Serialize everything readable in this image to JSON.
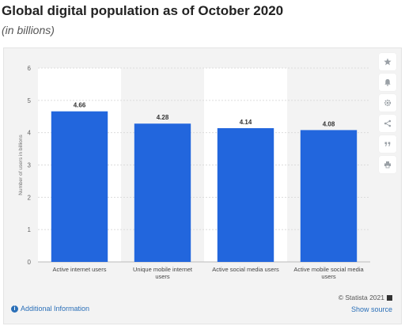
{
  "header": {
    "title": "Global digital population as of October 2020",
    "subtitle": "(in billions)"
  },
  "toolbar": {
    "icons": [
      "star-icon",
      "bell-icon",
      "gear-icon",
      "share-icon",
      "quote-icon",
      "print-icon"
    ]
  },
  "footer": {
    "copyright": "© Statista 2021",
    "additional_info": "Additional Information",
    "show_source": "Show source"
  },
  "colors": {
    "bar": "#2266dd",
    "stripe": "#f3f3f3",
    "plot_bg": "#ffffff"
  },
  "chart_data": {
    "type": "bar",
    "categories": [
      "Active internet users",
      "Unique mobile internet users",
      "Active social media users",
      "Active mobile social media users"
    ],
    "category_lines": [
      [
        "Active internet users"
      ],
      [
        "Unique mobile internet",
        "users"
      ],
      [
        "Active social media users"
      ],
      [
        "Active mobile social media",
        "users"
      ]
    ],
    "values": [
      4.66,
      4.28,
      4.14,
      4.08
    ],
    "data_labels": [
      "4.66",
      "4.28",
      "4.14",
      "4.08"
    ],
    "title": "",
    "xlabel": "",
    "ylabel": "Number of users in billions",
    "ylim": [
      0,
      6
    ],
    "yticks": [
      0,
      1,
      2,
      3,
      4,
      5,
      6
    ],
    "grid": true,
    "legend": "none"
  }
}
